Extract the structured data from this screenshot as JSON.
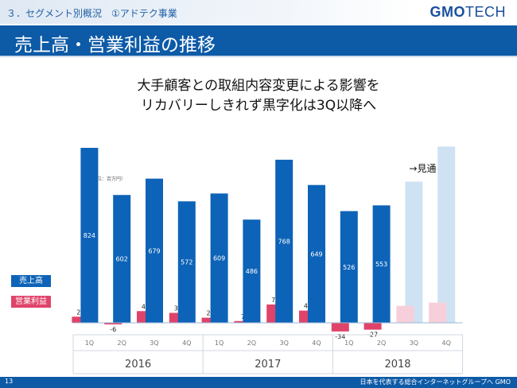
{
  "header": {
    "breadcrumb": "３．セグメント別概況　①アドテク事業",
    "logo_bold": "GMO",
    "logo_light": "TECH"
  },
  "page_title": "売上高・営業利益の推移",
  "headline": {
    "line1": "大手顧客との取組内容変更による影響を",
    "line2": "リカバリーしきれず黒字化は3Q以降へ"
  },
  "footer": {
    "page_number": "13",
    "text": "日本を代表する総合インターネットグループへ GMO"
  },
  "colors": {
    "revenue": "#0d63b7",
    "profit": "#e0436a",
    "forecast_revenue": "#cfe2f3",
    "forecast_profit": "#f6cfda",
    "title_bar": "#0d5aa7"
  },
  "chart_data": {
    "type": "bar",
    "unit_note": "（単位：百万円）",
    "forecast_label": "→見通し",
    "categories": [
      "1Q",
      "2Q",
      "3Q",
      "4Q",
      "1Q",
      "2Q",
      "3Q",
      "4Q",
      "1Q",
      "2Q",
      "3Q",
      "4Q"
    ],
    "years": [
      {
        "label": "2016",
        "quarters": 4
      },
      {
        "label": "2017",
        "quarters": 4
      },
      {
        "label": "2018",
        "quarters": 4
      }
    ],
    "series": [
      {
        "name": "売上高",
        "values": [
          824,
          602,
          679,
          572,
          609,
          486,
          768,
          649,
          526,
          553,
          null,
          null
        ]
      },
      {
        "name": "営業利益",
        "values": [
          24,
          -6,
          46,
          39,
          20,
          7,
          72,
          48,
          -34,
          -27,
          null,
          null
        ]
      }
    ],
    "forecast": {
      "revenue": [
        null,
        null,
        null,
        null,
        null,
        null,
        null,
        null,
        null,
        null,
        665,
        830
      ],
      "profit": [
        null,
        null,
        null,
        null,
        null,
        null,
        null,
        null,
        null,
        null,
        80,
        95
      ]
    },
    "ylim": [
      -40,
      835
    ]
  }
}
